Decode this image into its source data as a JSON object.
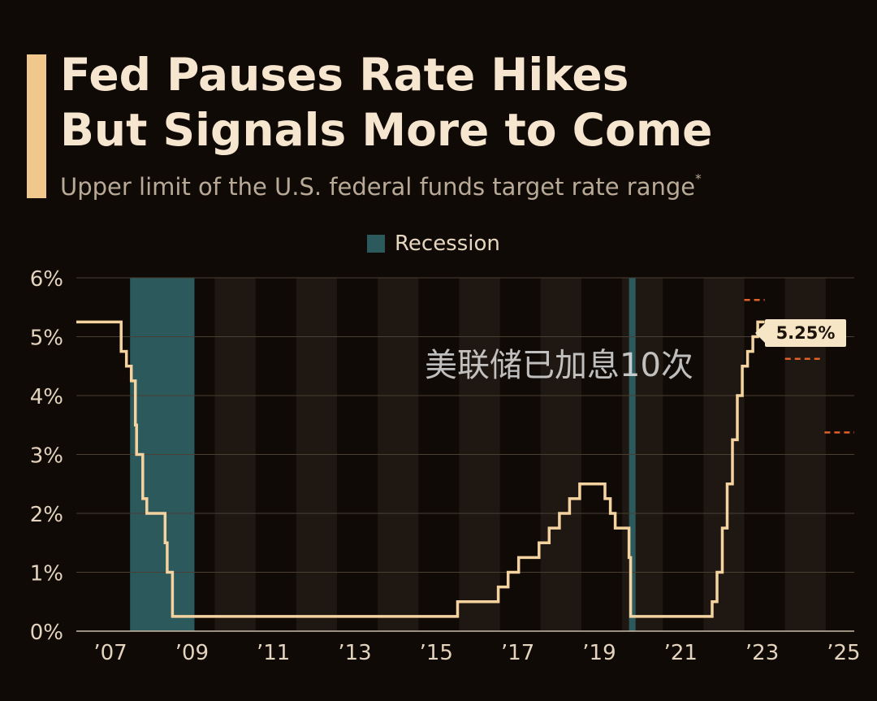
{
  "header": {
    "title_line1": "Fed Pauses Rate Hikes",
    "title_line2": "But Signals More to Come",
    "subtitle": "Upper limit of the U.S. federal funds target rate range",
    "subtitle_mark": "*"
  },
  "legend": {
    "recession_label": "Recession"
  },
  "overlay": {
    "watermark_text": "美联储已加息10次"
  },
  "colors": {
    "background": "#100a06",
    "line": "#f4d3a0",
    "recession": "#2c5a5c",
    "projection": "#e0602a",
    "accent": "#f0c88c",
    "stripe": "#1f1812"
  },
  "chart_data": {
    "type": "line",
    "title": "Fed Pauses Rate Hikes But Signals More to Come",
    "subtitle": "Upper limit of the U.S. federal funds target rate range",
    "xlim": [
      2006.6,
      2025.7
    ],
    "ylim": [
      0,
      6
    ],
    "grid": true,
    "x_ticks": [
      {
        "value": 2007,
        "label": "’07"
      },
      {
        "value": 2009,
        "label": "’09"
      },
      {
        "value": 2011,
        "label": "’11"
      },
      {
        "value": 2013,
        "label": "’13"
      },
      {
        "value": 2015,
        "label": "’15"
      },
      {
        "value": 2017,
        "label": "’17"
      },
      {
        "value": 2019,
        "label": "’19"
      },
      {
        "value": 2021,
        "label": "’21"
      },
      {
        "value": 2023,
        "label": "’23"
      },
      {
        "value": 2025,
        "label": "’25"
      }
    ],
    "y_ticks": [
      {
        "value": 0,
        "label": "0%"
      },
      {
        "value": 1,
        "label": "1%"
      },
      {
        "value": 2,
        "label": "2%"
      },
      {
        "value": 3,
        "label": "3%"
      },
      {
        "value": 4,
        "label": "4%"
      },
      {
        "value": 5,
        "label": "5%"
      },
      {
        "value": 6,
        "label": "6%"
      }
    ],
    "recessions": [
      {
        "start": 2007.92,
        "end": 2009.5
      },
      {
        "start": 2020.17,
        "end": 2020.33
      }
    ],
    "series": [
      {
        "values": [
          [
            2006.6,
            5.25
          ],
          [
            2007.7,
            5.25
          ],
          [
            2007.7,
            4.75
          ],
          [
            2007.83,
            4.75
          ],
          [
            2007.83,
            4.5
          ],
          [
            2007.95,
            4.5
          ],
          [
            2007.95,
            4.25
          ],
          [
            2008.05,
            4.25
          ],
          [
            2008.05,
            3.5
          ],
          [
            2008.08,
            3.5
          ],
          [
            2008.08,
            3.0
          ],
          [
            2008.23,
            3.0
          ],
          [
            2008.23,
            2.25
          ],
          [
            2008.33,
            2.25
          ],
          [
            2008.33,
            2.0
          ],
          [
            2008.78,
            2.0
          ],
          [
            2008.78,
            1.5
          ],
          [
            2008.83,
            1.5
          ],
          [
            2008.83,
            1.0
          ],
          [
            2008.96,
            1.0
          ],
          [
            2008.96,
            0.25
          ],
          [
            2015.96,
            0.25
          ],
          [
            2015.96,
            0.5
          ],
          [
            2016.96,
            0.5
          ],
          [
            2016.96,
            0.75
          ],
          [
            2017.2,
            0.75
          ],
          [
            2017.2,
            1.0
          ],
          [
            2017.46,
            1.0
          ],
          [
            2017.46,
            1.25
          ],
          [
            2017.96,
            1.25
          ],
          [
            2017.96,
            1.5
          ],
          [
            2018.21,
            1.5
          ],
          [
            2018.21,
            1.75
          ],
          [
            2018.46,
            1.75
          ],
          [
            2018.46,
            2.0
          ],
          [
            2018.71,
            2.0
          ],
          [
            2018.71,
            2.25
          ],
          [
            2018.96,
            2.25
          ],
          [
            2018.96,
            2.5
          ],
          [
            2019.58,
            2.5
          ],
          [
            2019.58,
            2.25
          ],
          [
            2019.71,
            2.25
          ],
          [
            2019.71,
            2.0
          ],
          [
            2019.83,
            2.0
          ],
          [
            2019.83,
            1.75
          ],
          [
            2020.17,
            1.75
          ],
          [
            2020.17,
            1.25
          ],
          [
            2020.21,
            1.25
          ],
          [
            2020.21,
            0.25
          ],
          [
            2022.21,
            0.25
          ],
          [
            2022.21,
            0.5
          ],
          [
            2022.33,
            0.5
          ],
          [
            2022.33,
            1.0
          ],
          [
            2022.46,
            1.0
          ],
          [
            2022.46,
            1.75
          ],
          [
            2022.58,
            1.75
          ],
          [
            2022.58,
            2.5
          ],
          [
            2022.71,
            2.5
          ],
          [
            2022.71,
            3.25
          ],
          [
            2022.83,
            3.25
          ],
          [
            2022.83,
            4.0
          ],
          [
            2022.95,
            4.0
          ],
          [
            2022.95,
            4.5
          ],
          [
            2023.08,
            4.5
          ],
          [
            2023.08,
            4.75
          ],
          [
            2023.21,
            4.75
          ],
          [
            2023.21,
            5.0
          ],
          [
            2023.33,
            5.0
          ],
          [
            2023.33,
            5.25
          ],
          [
            2023.5,
            5.25
          ]
        ]
      }
    ],
    "projections": [
      {
        "x0": 2023.0,
        "x1": 2023.5,
        "y": 5.625
      },
      {
        "x0": 2024.0,
        "x1": 2024.9,
        "y": 4.625
      },
      {
        "x0": 2024.97,
        "x1": 2025.7,
        "y": 3.375
      }
    ],
    "annotations": [
      {
        "x": 2023.5,
        "y": 5.25,
        "text": "5.25%"
      }
    ]
  }
}
